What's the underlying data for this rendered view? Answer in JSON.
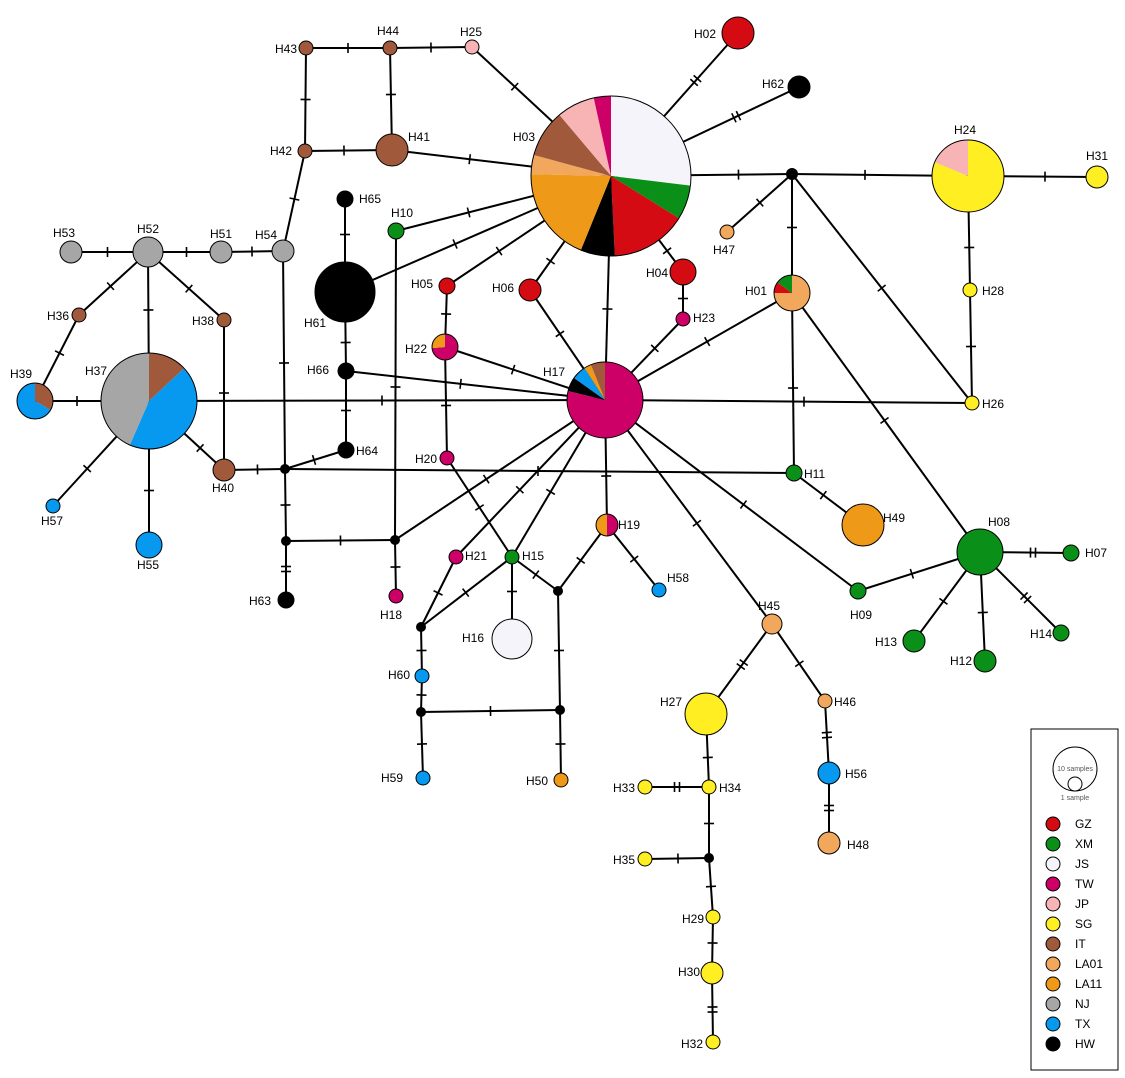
{
  "legend": {
    "size_large_label": "10 samples",
    "size_small_label": "1 sample",
    "populations": [
      {
        "code": "GZ",
        "color": "#d40b12"
      },
      {
        "code": "XM",
        "color": "#0a9018"
      },
      {
        "code": "JS",
        "color": "#f4f4fa"
      },
      {
        "code": "TW",
        "color": "#cc0066"
      },
      {
        "code": "JP",
        "color": "#f8b4b4"
      },
      {
        "code": "SG",
        "color": "#ffee22"
      },
      {
        "code": "IT",
        "color": "#a0593a"
      },
      {
        "code": "LA01",
        "color": "#f2a85c"
      },
      {
        "code": "LA11",
        "color": "#ee9a18"
      },
      {
        "code": "NJ",
        "color": "#a6a6a6"
      },
      {
        "code": "TX",
        "color": "#0798f0"
      },
      {
        "code": "HW",
        "color": "#000000"
      }
    ]
  },
  "haplotypes": [
    {
      "id": "H01",
      "label": "H01",
      "samples": [
        [
          "LA01",
          3
        ],
        [
          "GZ",
          0.4
        ],
        [
          "XM",
          0.6
        ]
      ]
    },
    {
      "id": "H02",
      "label": "H02",
      "samples": [
        [
          "GZ",
          1
        ]
      ]
    },
    {
      "id": "H03",
      "label": "H03",
      "samples": [
        [
          "JS",
          7
        ],
        [
          "XM",
          1.8
        ],
        [
          "GZ",
          4
        ],
        [
          "HW",
          1.8
        ],
        [
          "LA11",
          5
        ],
        [
          "LA01",
          1
        ],
        [
          "IT",
          2.5
        ],
        [
          "JP",
          2
        ],
        [
          "TW",
          0.9
        ]
      ]
    },
    {
      "id": "H04",
      "label": "H04",
      "samples": [
        [
          "GZ",
          1
        ]
      ]
    },
    {
      "id": "H05",
      "label": "H05",
      "samples": [
        [
          "GZ",
          1
        ]
      ]
    },
    {
      "id": "H06",
      "label": "H06",
      "samples": [
        [
          "GZ",
          1
        ]
      ]
    },
    {
      "id": "H07",
      "label": "H07",
      "samples": [
        [
          "XM",
          1
        ]
      ]
    },
    {
      "id": "H08",
      "label": "H08",
      "samples": [
        [
          "XM",
          1
        ]
      ]
    },
    {
      "id": "H09",
      "label": "H09",
      "samples": [
        [
          "XM",
          1
        ]
      ]
    },
    {
      "id": "H10",
      "label": "H10",
      "samples": [
        [
          "XM",
          1
        ]
      ]
    },
    {
      "id": "H11",
      "label": "H11",
      "samples": [
        [
          "XM",
          1
        ]
      ]
    },
    {
      "id": "H12",
      "label": "H12",
      "samples": [
        [
          "XM",
          1
        ]
      ]
    },
    {
      "id": "H13",
      "label": "H13",
      "samples": [
        [
          "XM",
          1
        ]
      ]
    },
    {
      "id": "H14",
      "label": "H14",
      "samples": [
        [
          "XM",
          1
        ]
      ]
    },
    {
      "id": "H15",
      "label": "H15",
      "samples": [
        [
          "XM",
          1
        ]
      ]
    },
    {
      "id": "H16",
      "label": "H16",
      "samples": [
        [
          "JS",
          1
        ]
      ]
    },
    {
      "id": "H17",
      "label": "H17",
      "samples": [
        [
          "TW",
          13
        ],
        [
          "HW",
          1
        ],
        [
          "TX",
          1
        ],
        [
          "LA11",
          0.5
        ],
        [
          "IT",
          1
        ]
      ]
    },
    {
      "id": "H18",
      "label": "H18",
      "samples": [
        [
          "TW",
          1
        ]
      ]
    },
    {
      "id": "H19",
      "label": "H19",
      "samples": [
        [
          "TW",
          1
        ],
        [
          "LA11",
          1
        ]
      ]
    },
    {
      "id": "H20",
      "label": "H20",
      "samples": [
        [
          "TW",
          1
        ]
      ]
    },
    {
      "id": "H21",
      "label": "H21",
      "samples": [
        [
          "TW",
          1
        ]
      ]
    },
    {
      "id": "H22",
      "label": "H22",
      "samples": [
        [
          "TW",
          2.8
        ],
        [
          "LA11",
          1
        ]
      ]
    },
    {
      "id": "H23",
      "label": "H23",
      "samples": [
        [
          "TW",
          1
        ]
      ]
    },
    {
      "id": "H24",
      "label": "H24",
      "samples": [
        [
          "SG",
          6.5
        ],
        [
          "JP",
          1.5
        ]
      ]
    },
    {
      "id": "H25",
      "label": "H25",
      "samples": [
        [
          "JP",
          1
        ]
      ]
    },
    {
      "id": "H26",
      "label": "H26",
      "samples": [
        [
          "SG",
          1
        ]
      ]
    },
    {
      "id": "H27",
      "label": "H27",
      "samples": [
        [
          "SG",
          1
        ]
      ]
    },
    {
      "id": "H28",
      "label": "H28",
      "samples": [
        [
          "SG",
          1
        ]
      ]
    },
    {
      "id": "H29",
      "label": "H29",
      "samples": [
        [
          "SG",
          1
        ]
      ]
    },
    {
      "id": "H30",
      "label": "H30",
      "samples": [
        [
          "SG",
          1
        ]
      ]
    },
    {
      "id": "H31",
      "label": "H31",
      "samples": [
        [
          "SG",
          1
        ]
      ]
    },
    {
      "id": "H32",
      "label": "H32",
      "samples": [
        [
          "SG",
          1
        ]
      ]
    },
    {
      "id": "H33",
      "label": "H33",
      "samples": [
        [
          "SG",
          1
        ]
      ]
    },
    {
      "id": "H34",
      "label": "H34",
      "samples": [
        [
          "SG",
          1
        ]
      ]
    },
    {
      "id": "H35",
      "label": "H35",
      "samples": [
        [
          "SG",
          1
        ]
      ]
    },
    {
      "id": "H36",
      "label": "H36",
      "samples": [
        [
          "IT",
          1
        ]
      ]
    },
    {
      "id": "H37",
      "label": "H37",
      "samples": [
        [
          "IT",
          1.5
        ],
        [
          "TX",
          5
        ],
        [
          "NJ",
          5
        ]
      ]
    },
    {
      "id": "H38",
      "label": "H38",
      "samples": [
        [
          "IT",
          1
        ]
      ]
    },
    {
      "id": "H39",
      "label": "H39",
      "samples": [
        [
          "IT",
          1
        ],
        [
          "TX",
          2
        ]
      ]
    },
    {
      "id": "H40",
      "label": "H40",
      "samples": [
        [
          "IT",
          1
        ]
      ]
    },
    {
      "id": "H41",
      "label": "H41",
      "samples": [
        [
          "IT",
          1
        ]
      ]
    },
    {
      "id": "H42",
      "label": "H42",
      "samples": [
        [
          "IT",
          1
        ]
      ]
    },
    {
      "id": "H43",
      "label": "H43",
      "samples": [
        [
          "IT",
          1
        ]
      ]
    },
    {
      "id": "H44",
      "label": "H44",
      "samples": [
        [
          "IT",
          1
        ]
      ]
    },
    {
      "id": "H45",
      "label": "H45",
      "samples": [
        [
          "LA01",
          1
        ]
      ]
    },
    {
      "id": "H46",
      "label": "H46",
      "samples": [
        [
          "LA01",
          1
        ]
      ]
    },
    {
      "id": "H47",
      "label": "H47",
      "samples": [
        [
          "LA01",
          1
        ]
      ]
    },
    {
      "id": "H48",
      "label": "H48",
      "samples": [
        [
          "LA01",
          1
        ]
      ]
    },
    {
      "id": "H49",
      "label": "H49",
      "samples": [
        [
          "LA11",
          1
        ]
      ]
    },
    {
      "id": "H50",
      "label": "H50",
      "samples": [
        [
          "LA11",
          1
        ]
      ]
    },
    {
      "id": "H51",
      "label": "H51",
      "samples": [
        [
          "NJ",
          1
        ]
      ]
    },
    {
      "id": "H52",
      "label": "H52",
      "samples": [
        [
          "NJ",
          1
        ]
      ]
    },
    {
      "id": "H53",
      "label": "H53",
      "samples": [
        [
          "NJ",
          1
        ]
      ]
    },
    {
      "id": "H54",
      "label": "H54",
      "samples": [
        [
          "NJ",
          1
        ]
      ]
    },
    {
      "id": "H55",
      "label": "H55",
      "samples": [
        [
          "TX",
          1
        ]
      ]
    },
    {
      "id": "H56",
      "label": "H56",
      "samples": [
        [
          "TX",
          1
        ]
      ]
    },
    {
      "id": "H57",
      "label": "H57",
      "samples": [
        [
          "TX",
          1
        ]
      ]
    },
    {
      "id": "H58",
      "label": "H58",
      "samples": [
        [
          "TX",
          1
        ]
      ]
    },
    {
      "id": "H59",
      "label": "H59",
      "samples": [
        [
          "TX",
          1
        ]
      ]
    },
    {
      "id": "H60",
      "label": "H60",
      "samples": [
        [
          "TX",
          1
        ]
      ]
    },
    {
      "id": "H61",
      "label": "H61",
      "samples": [
        [
          "HW",
          1
        ]
      ]
    },
    {
      "id": "H62",
      "label": "H62",
      "samples": [
        [
          "HW",
          1
        ]
      ]
    },
    {
      "id": "H63",
      "label": "H63",
      "samples": [
        [
          "HW",
          1
        ]
      ]
    },
    {
      "id": "H64",
      "label": "H64",
      "samples": [
        [
          "HW",
          1
        ]
      ]
    },
    {
      "id": "H65",
      "label": "H65",
      "samples": [
        [
          "HW",
          1
        ]
      ]
    },
    {
      "id": "H66",
      "label": "H66",
      "samples": [
        [
          "HW",
          1
        ]
      ]
    }
  ],
  "edges": [
    {
      "from": "H03",
      "to": "H02",
      "steps": 2
    },
    {
      "from": "H03",
      "to": "H62",
      "steps": 2
    },
    {
      "from": "H03",
      "to": "H25",
      "steps": 1
    },
    {
      "from": "H03",
      "to": "H41",
      "steps": 1
    },
    {
      "from": "H03",
      "to": "H10",
      "steps": 1
    },
    {
      "from": "H03",
      "to": "H61",
      "steps": 1
    },
    {
      "from": "H03",
      "to": "H05",
      "steps": 1
    },
    {
      "from": "H03",
      "to": "H06",
      "steps": 1
    },
    {
      "from": "H03",
      "to": "H04",
      "steps": 1
    },
    {
      "from": "H03",
      "to": "H17",
      "steps": 1
    },
    {
      "from": "H03",
      "to": "v1",
      "steps": 1
    },
    {
      "from": "v1",
      "to": "H24",
      "steps": 1
    },
    {
      "from": "v1",
      "to": "H47",
      "steps": 1
    },
    {
      "from": "v1",
      "to": "H01",
      "steps": 1
    },
    {
      "from": "v1",
      "to": "H26",
      "steps": 1
    },
    {
      "from": "H24",
      "to": "H31",
      "steps": 1
    },
    {
      "from": "H24",
      "to": "H28",
      "steps": 1
    },
    {
      "from": "H28",
      "to": "H26",
      "steps": 1
    },
    {
      "from": "H25",
      "to": "H44",
      "steps": 1
    },
    {
      "from": "H44",
      "to": "H43",
      "steps": 1
    },
    {
      "from": "H44",
      "to": "H41",
      "steps": 1
    },
    {
      "from": "H43",
      "to": "H42",
      "steps": 1
    },
    {
      "from": "H42",
      "to": "H41",
      "steps": 1
    },
    {
      "from": "H42",
      "to": "H54",
      "steps": 1
    },
    {
      "from": "H54",
      "to": "H51",
      "steps": 1
    },
    {
      "from": "H51",
      "to": "H52",
      "steps": 1
    },
    {
      "from": "H52",
      "to": "H53",
      "steps": 1
    },
    {
      "from": "H52",
      "to": "H36",
      "steps": 1
    },
    {
      "from": "H52",
      "to": "H38",
      "steps": 1
    },
    {
      "from": "H52",
      "to": "H37",
      "steps": 1
    },
    {
      "from": "H36",
      "to": "H39",
      "steps": 1
    },
    {
      "from": "H39",
      "to": "H37",
      "steps": 1
    },
    {
      "from": "H37",
      "to": "H17",
      "steps": 1
    },
    {
      "from": "H37",
      "to": "H57",
      "steps": 1
    },
    {
      "from": "H37",
      "to": "H55",
      "steps": 1
    },
    {
      "from": "H37",
      "to": "H40",
      "steps": 1
    },
    {
      "from": "H38",
      "to": "H40",
      "steps": 1
    },
    {
      "from": "H40",
      "to": "v2",
      "steps": 1
    },
    {
      "from": "H54",
      "to": "v2",
      "steps": 1
    },
    {
      "from": "v2",
      "to": "H64",
      "steps": 1
    },
    {
      "from": "v2",
      "to": "H11",
      "steps": 1
    },
    {
      "from": "v2",
      "to": "v3",
      "steps": 1
    },
    {
      "from": "v3",
      "to": "H63",
      "steps": 2
    },
    {
      "from": "v3",
      "to": "v4",
      "steps": 1
    },
    {
      "from": "H10",
      "to": "v4",
      "steps": 1
    },
    {
      "from": "v4",
      "to": "H18",
      "steps": 1
    },
    {
      "from": "v4",
      "to": "H17",
      "steps": 1
    },
    {
      "from": "H65",
      "to": "H61",
      "steps": 1
    },
    {
      "from": "H61",
      "to": "H66",
      "steps": 1
    },
    {
      "from": "H66",
      "to": "H64",
      "steps": 1
    },
    {
      "from": "H66",
      "to": "H17",
      "steps": 1
    },
    {
      "from": "H05",
      "to": "H22",
      "steps": 1
    },
    {
      "from": "H22",
      "to": "H17",
      "steps": 1
    },
    {
      "from": "H22",
      "to": "H20",
      "steps": 1
    },
    {
      "from": "H20",
      "to": "H15",
      "steps": 1
    },
    {
      "from": "H06",
      "to": "H17",
      "steps": 1
    },
    {
      "from": "H04",
      "to": "H23",
      "steps": 1
    },
    {
      "from": "H23",
      "to": "H17",
      "steps": 1
    },
    {
      "from": "H01",
      "to": "H17",
      "steps": 1
    },
    {
      "from": "H01",
      "to": "H11",
      "steps": 1
    },
    {
      "from": "H01",
      "to": "H08",
      "steps": 1
    },
    {
      "from": "H17",
      "to": "H26",
      "steps": 1
    },
    {
      "from": "H17",
      "to": "H19",
      "steps": 1
    },
    {
      "from": "H17",
      "to": "H15",
      "steps": 1
    },
    {
      "from": "H17",
      "to": "H21",
      "steps": 1
    },
    {
      "from": "H17",
      "to": "H45",
      "steps": 1
    },
    {
      "from": "H17",
      "to": "H09",
      "steps": 1
    },
    {
      "from": "H11",
      "to": "H49",
      "steps": 1
    },
    {
      "from": "H09",
      "to": "H08",
      "steps": 1
    },
    {
      "from": "H08",
      "to": "H07",
      "steps": 2
    },
    {
      "from": "H08",
      "to": "H13",
      "steps": 1
    },
    {
      "from": "H08",
      "to": "H12",
      "steps": 1
    },
    {
      "from": "H08",
      "to": "H14",
      "steps": 2
    },
    {
      "from": "H19",
      "to": "H58",
      "steps": 1
    },
    {
      "from": "H19",
      "to": "v6",
      "steps": 1
    },
    {
      "from": "H15",
      "to": "v6",
      "steps": 1
    },
    {
      "from": "H15",
      "to": "H16",
      "steps": 1
    },
    {
      "from": "H15",
      "to": "v5",
      "steps": 1
    },
    {
      "from": "H21",
      "to": "v5",
      "steps": 1
    },
    {
      "from": "v5",
      "to": "H60",
      "steps": 1
    },
    {
      "from": "H60",
      "to": "v7",
      "steps": 1
    },
    {
      "from": "v7",
      "to": "H59",
      "steps": 1
    },
    {
      "from": "v7",
      "to": "v8",
      "steps": 1
    },
    {
      "from": "v6",
      "to": "v8",
      "steps": 1
    },
    {
      "from": "v8",
      "to": "H50",
      "steps": 1
    },
    {
      "from": "H45",
      "to": "H27",
      "steps": 2
    },
    {
      "from": "H45",
      "to": "H46",
      "steps": 1
    },
    {
      "from": "H46",
      "to": "H56",
      "steps": 2
    },
    {
      "from": "H56",
      "to": "H48",
      "steps": 2
    },
    {
      "from": "H27",
      "to": "H34",
      "steps": 1
    },
    {
      "from": "H34",
      "to": "H33",
      "steps": 2
    },
    {
      "from": "H34",
      "to": "v9",
      "steps": 1
    },
    {
      "from": "v9",
      "to": "H35",
      "steps": 1
    },
    {
      "from": "v9",
      "to": "H29",
      "steps": 1
    },
    {
      "from": "H29",
      "to": "H30",
      "steps": 1
    },
    {
      "from": "H30",
      "to": "H32",
      "steps": 2
    }
  ]
}
